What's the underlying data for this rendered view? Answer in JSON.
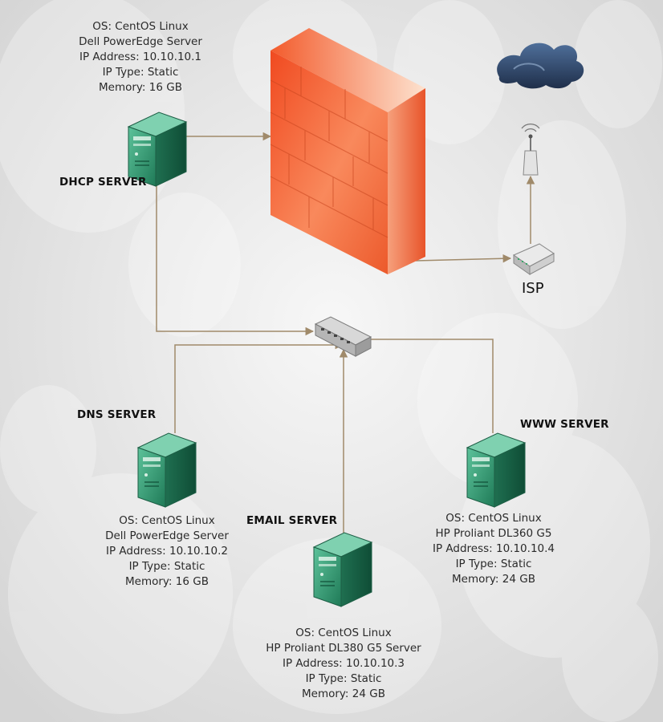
{
  "servers": {
    "dhcp": {
      "title": "DHCP SERVER",
      "lines": [
        "OS: CentOS Linux",
        "Dell PowerEdge Server",
        "IP Address: 10.10.10.1",
        "IP Type: Static",
        "Memory: 16 GB"
      ]
    },
    "dns": {
      "title": "DNS SERVER",
      "lines": [
        "OS: CentOS Linux",
        "Dell PowerEdge Server",
        "IP Address: 10.10.10.2",
        "IP Type: Static",
        "Memory: 16 GB"
      ]
    },
    "email": {
      "title": "EMAIL SERVER",
      "lines": [
        "OS: CentOS Linux",
        "HP Proliant DL380 G5 Server",
        "IP Address: 10.10.10.3",
        "IP Type: Static",
        "Memory: 24 GB"
      ]
    },
    "www": {
      "title": "WWW SERVER",
      "lines": [
        "OS: CentOS Linux",
        "HP Proliant DL360 G5",
        "IP Address: 10.10.10.4",
        "IP Type: Static",
        "Memory: 24 GB"
      ]
    }
  },
  "isp_label": "ISP",
  "icons": [
    "server-icon",
    "firewall-icon",
    "switch-icon",
    "router-icon",
    "antenna-icon",
    "cloud-icon"
  ],
  "colors": {
    "connector": "#a08a6a",
    "server": "#2f8f6a",
    "firewall": "#f26a3a"
  }
}
